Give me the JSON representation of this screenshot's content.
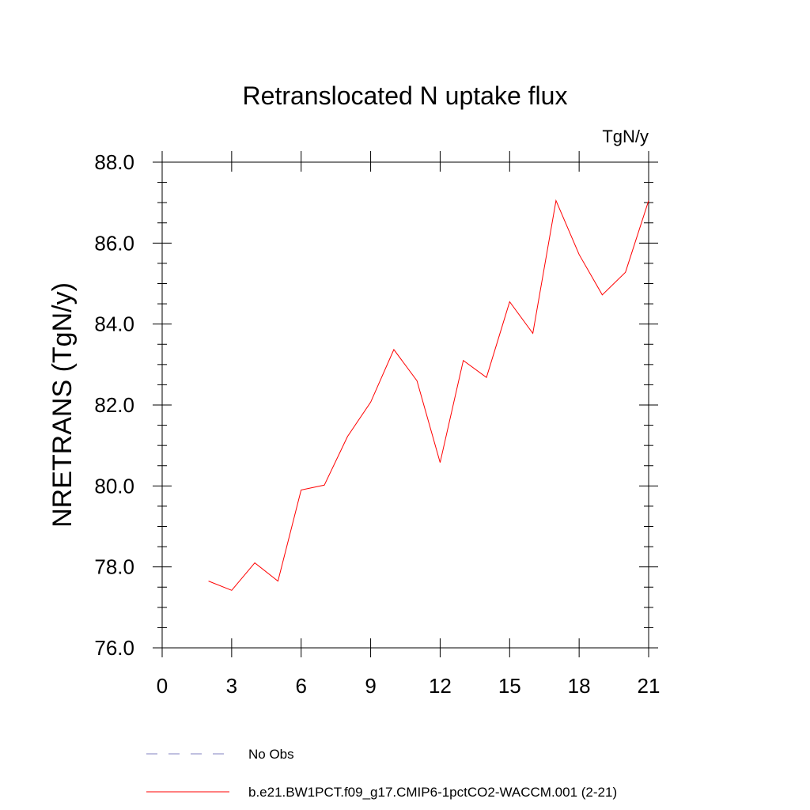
{
  "chart_data": {
    "type": "line",
    "title": "Retranslocated N uptake flux",
    "units_label": "TgN/y",
    "xlabel": "",
    "ylabel": "NRETRANS  (TgN/y)",
    "xlim": [
      0,
      21
    ],
    "ylim": [
      76.0,
      88.0
    ],
    "x_ticks": [
      "0",
      "3",
      "6",
      "9",
      "12",
      "15",
      "18",
      "21"
    ],
    "y_ticks": [
      "76.0",
      "78.0",
      "80.0",
      "82.0",
      "84.0",
      "86.0",
      "88.0"
    ],
    "grid": false,
    "legend_position": "bottom",
    "series": [
      {
        "name": "b.e21.BW1PCT.f09_g17.CMIP6-1pctCO2-WACCM.001 (2-21)",
        "color": "#ff0000",
        "style": "solid",
        "x": [
          2,
          3,
          4,
          5,
          6,
          7,
          8,
          9,
          10,
          11,
          12,
          13,
          14,
          15,
          16,
          17,
          18,
          19,
          20,
          21
        ],
        "y": [
          77.65,
          77.42,
          78.1,
          77.65,
          79.9,
          80.02,
          81.22,
          82.07,
          83.37,
          82.6,
          80.58,
          83.1,
          82.68,
          84.55,
          83.77,
          87.05,
          85.72,
          84.72,
          85.28,
          87.05
        ]
      }
    ],
    "legend": [
      {
        "label": "No Obs",
        "color": "#8080c0",
        "style": "dashed"
      },
      {
        "label": "b.e21.BW1PCT.f09_g17.CMIP6-1pctCO2-WACCM.001 (2-21)",
        "color": "#ff0000",
        "style": "solid"
      }
    ]
  }
}
